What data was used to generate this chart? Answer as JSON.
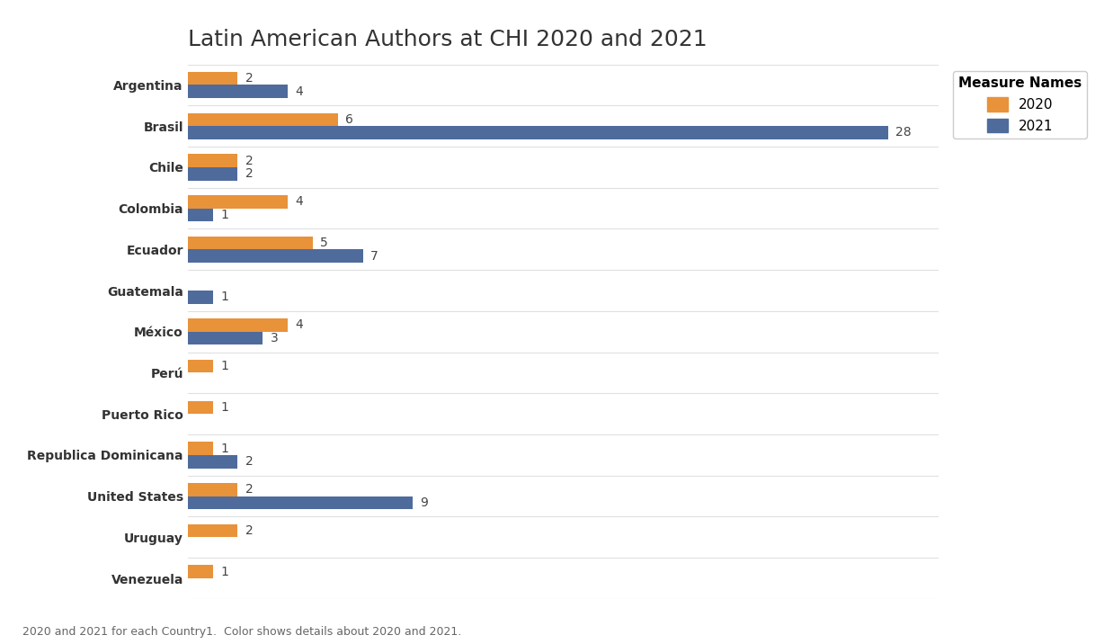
{
  "title": "Latin American Authors at CHI 2020 and 2021",
  "caption": "2020 and 2021 for each Country1.  Color shows details about 2020 and 2021.",
  "countries": [
    "Argentina",
    "Brasil",
    "Chile",
    "Colombia",
    "Ecuador",
    "Guatemala",
    "México",
    "Perú",
    "Puerto Rico",
    "Republica Dominicana",
    "United States",
    "Uruguay",
    "Venezuela"
  ],
  "values_2020": [
    2,
    6,
    2,
    4,
    5,
    0,
    4,
    1,
    1,
    1,
    2,
    2,
    1
  ],
  "values_2021": [
    4,
    28,
    2,
    1,
    7,
    1,
    3,
    0,
    0,
    2,
    9,
    0,
    0
  ],
  "color_2020": "#E8923A",
  "color_2021": "#4E6B9C",
  "legend_title": "Measure Names",
  "legend_labels": [
    "2020",
    "2021"
  ],
  "background_color": "#FFFFFF",
  "row_color": "#F0F0F0",
  "grid_color": "#E0E0E0",
  "bar_height": 0.32,
  "xlim": [
    0,
    30
  ],
  "title_fontsize": 18,
  "label_fontsize": 11,
  "tick_fontsize": 10,
  "value_fontsize": 10
}
